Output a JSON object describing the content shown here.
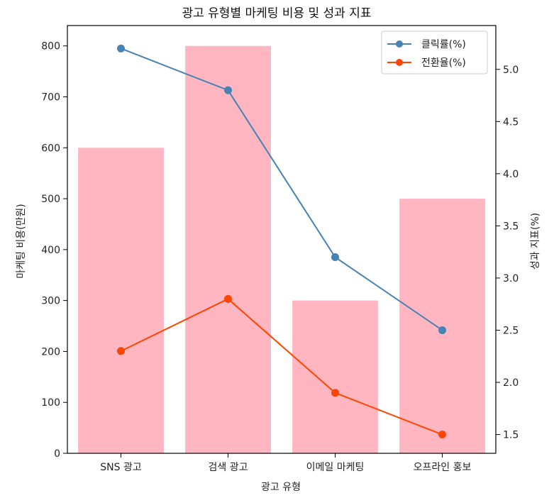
{
  "chart_data": {
    "type": "bar+line",
    "title": "광고 유형별 마케팅 비용 및 성과 지표",
    "xlabel": "광고 유형",
    "ylabel_left": "마케팅 비용(만원)",
    "ylabel_right": "성과 지표(%)",
    "categories": [
      "SNS 광고",
      "검색 광고",
      "이메일 마케팅",
      "오프라인 홍보"
    ],
    "bars": {
      "values": [
        600,
        800,
        300,
        500
      ],
      "color": "#ffb6c1"
    },
    "ylim_left": [
      0,
      840
    ],
    "yticks_left": [
      0,
      100,
      200,
      300,
      400,
      500,
      600,
      700,
      800
    ],
    "ylim_right": [
      1.32,
      5.42
    ],
    "yticks_right": [
      1.5,
      2.0,
      2.5,
      3.0,
      3.5,
      4.0,
      4.5,
      5.0
    ],
    "series": [
      {
        "name": "클릭률(%)",
        "values": [
          5.2,
          4.8,
          3.2,
          2.5
        ],
        "color": "#4682b4"
      },
      {
        "name": "전환율(%)",
        "values": [
          2.3,
          2.8,
          1.9,
          1.5
        ],
        "color": "#ff4500"
      }
    ],
    "legend_position": "top-right",
    "grid": false
  }
}
